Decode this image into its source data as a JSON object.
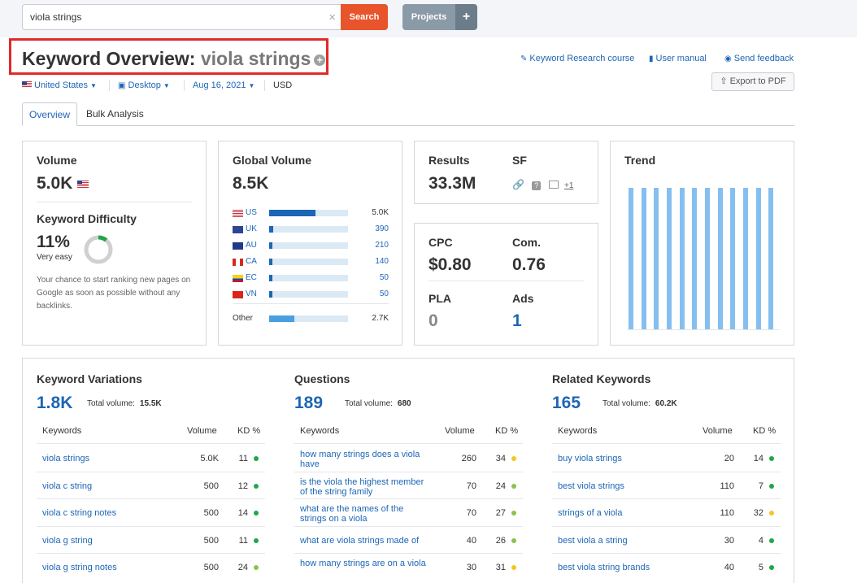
{
  "search": {
    "value": "viola strings",
    "clear_icon": "close-icon",
    "button_label": "Search"
  },
  "projects": {
    "label": "Projects",
    "plus": "+"
  },
  "title": {
    "prefix": "Keyword Overview:",
    "keyword": "viola strings",
    "plus": "+"
  },
  "links": {
    "course": "Keyword Research course",
    "manual": "User manual",
    "feedback": "Send feedback",
    "export": "Export to PDF"
  },
  "filters": {
    "country": "United States",
    "device": "Desktop",
    "date": "Aug 16, 2021",
    "currency": "USD"
  },
  "tabs": [
    "Overview",
    "Bulk Analysis"
  ],
  "volume": {
    "label": "Volume",
    "value": "5.0K"
  },
  "kd": {
    "label": "Keyword Difficulty",
    "value": "11%",
    "level": "Very easy",
    "percent": 11,
    "description": "Your chance to start ranking new pages on Google as soon as possible without any backlinks."
  },
  "global_volume": {
    "label": "Global Volume",
    "value": "8.5K",
    "rows": [
      {
        "code": "US",
        "value": "5.0K",
        "share": 0.59
      },
      {
        "code": "UK",
        "value": "390",
        "share": 0.05
      },
      {
        "code": "AU",
        "value": "210",
        "share": 0.03
      },
      {
        "code": "CA",
        "value": "140",
        "share": 0.02
      },
      {
        "code": "EC",
        "value": "50",
        "share": 0.01
      },
      {
        "code": "VN",
        "value": "50",
        "share": 0.01
      }
    ],
    "other": {
      "label": "Other",
      "value": "2.7K",
      "share": 0.32
    }
  },
  "results": {
    "label": "Results",
    "value": "33.3M",
    "sf_label": "SF",
    "sf_more": "+1"
  },
  "cpc": {
    "label": "CPC",
    "value": "$0.80"
  },
  "com": {
    "label": "Com.",
    "value": "0.76"
  },
  "pla": {
    "label": "PLA",
    "value": "0"
  },
  "ads": {
    "label": "Ads",
    "value": "1"
  },
  "trend": {
    "label": "Trend",
    "values": [
      1,
      1,
      1,
      1,
      1,
      1,
      1,
      1,
      1,
      1,
      1,
      1
    ]
  },
  "columns": {
    "keywords": "Keywords",
    "volume": "Volume",
    "kd": "KD %"
  },
  "total_label": "Total volume:",
  "variations": {
    "title": "Keyword Variations",
    "count": "1.8K",
    "total": "15.5K",
    "rows": [
      {
        "kw": "viola strings",
        "vol": "5.0K",
        "kd": "11",
        "color": "#21a649"
      },
      {
        "kw": "viola c string",
        "vol": "500",
        "kd": "12",
        "color": "#21a649"
      },
      {
        "kw": "viola c string notes",
        "vol": "500",
        "kd": "14",
        "color": "#21a649"
      },
      {
        "kw": "viola g string",
        "vol": "500",
        "kd": "11",
        "color": "#21a649"
      },
      {
        "kw": "viola g string notes",
        "vol": "500",
        "kd": "24",
        "color": "#8bc34a"
      }
    ]
  },
  "questions": {
    "title": "Questions",
    "count": "189",
    "total": "680",
    "rows": [
      {
        "kw": "how many strings does a viola have",
        "vol": "260",
        "kd": "34",
        "color": "#f5c624"
      },
      {
        "kw": "is the viola the highest member of the string family",
        "vol": "70",
        "kd": "24",
        "color": "#8bc34a"
      },
      {
        "kw": "what are the names of the strings on a viola",
        "vol": "70",
        "kd": "27",
        "color": "#8bc34a"
      },
      {
        "kw": "what are viola strings made of",
        "vol": "40",
        "kd": "26",
        "color": "#8bc34a"
      },
      {
        "kw": "how many strings are on a viola",
        "vol": "30",
        "kd": "31",
        "color": "#f5c624"
      }
    ]
  },
  "related": {
    "title": "Related Keywords",
    "count": "165",
    "total": "60.2K",
    "rows": [
      {
        "kw": "buy viola strings",
        "vol": "20",
        "kd": "14",
        "color": "#21a649"
      },
      {
        "kw": "best viola strings",
        "vol": "110",
        "kd": "7",
        "color": "#21a649"
      },
      {
        "kw": "strings of a viola",
        "vol": "110",
        "kd": "32",
        "color": "#f5c624"
      },
      {
        "kw": "best viola a string",
        "vol": "30",
        "kd": "4",
        "color": "#21a649"
      },
      {
        "kw": "best viola string brands",
        "vol": "40",
        "kd": "5",
        "color": "#21a649"
      }
    ]
  }
}
